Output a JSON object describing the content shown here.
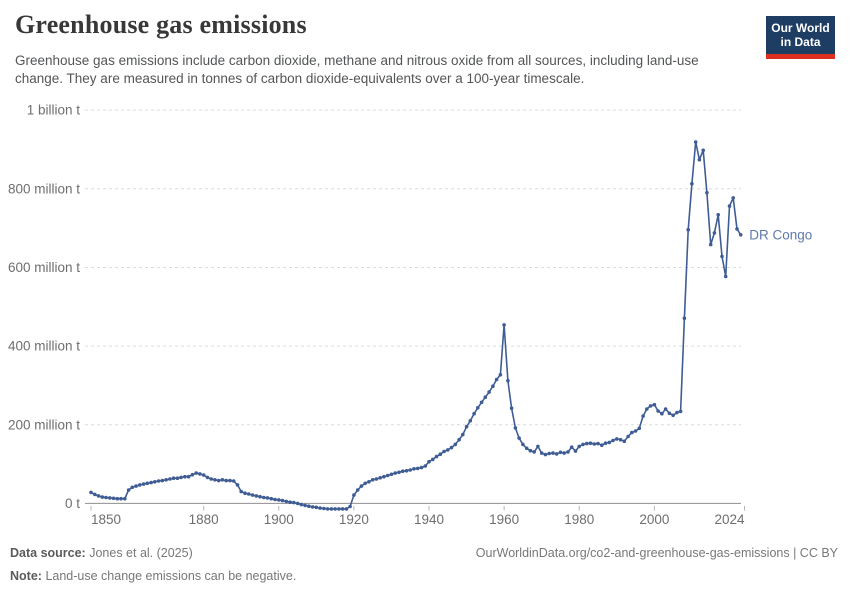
{
  "header": {
    "title": "Greenhouse gas emissions",
    "subtitle": "Greenhouse gas emissions include carbon dioxide, methane and nitrous oxide from all sources, including land-use change. They are measured in tonnes of carbon dioxide-equivalents over a 100-year timescale.",
    "logo_line1": "Our World",
    "logo_line2": "in Data",
    "logo_bg": "#1d3d63",
    "logo_stripe": "#dc2f1f"
  },
  "chart_data": {
    "type": "line",
    "title": "Greenhouse gas emissions",
    "unit": "tonnes of CO₂-equivalents",
    "grid": true,
    "x_start": 1850,
    "x_end": 2023,
    "x_ticks": [
      1850,
      1880,
      1900,
      1920,
      1940,
      1960,
      1980,
      2000,
      2024
    ],
    "xlim": [
      1850,
      2024
    ],
    "ylim": [
      -30,
      1000
    ],
    "y_ticks": [
      {
        "value": 0,
        "label": "0 t"
      },
      {
        "value": 200,
        "label": "200 million t"
      },
      {
        "value": 400,
        "label": "400 million t"
      },
      {
        "value": 600,
        "label": "600 million t"
      },
      {
        "value": 800,
        "label": "800 million t"
      },
      {
        "value": 1000,
        "label": "1 billion t"
      }
    ],
    "legend_position": "end-of-line-label",
    "series": [
      {
        "name": "DR Congo",
        "color": "#3f5d94",
        "label_color": "#6079ad",
        "values_unit": "million tonnes",
        "values": [
          28,
          23,
          19,
          16,
          15,
          14,
          13,
          12,
          12,
          12,
          34,
          41,
          44,
          47,
          49,
          51,
          53,
          55,
          57,
          58,
          60,
          62,
          64,
          64,
          66,
          68,
          68,
          73,
          77,
          75,
          72,
          66,
          62,
          60,
          58,
          60,
          58,
          58,
          57,
          47,
          30,
          26,
          24,
          21,
          19,
          17,
          15,
          14,
          12,
          10,
          9,
          7,
          5,
          3,
          2,
          0,
          -3,
          -5,
          -7,
          -9,
          -10,
          -12,
          -13,
          -14,
          -14,
          -14,
          -14,
          -14,
          -14,
          -8,
          21,
          34,
          44,
          51,
          55,
          60,
          62,
          65,
          68,
          71,
          74,
          77,
          79,
          82,
          83,
          85,
          88,
          89,
          91,
          95,
          106,
          112,
          119,
          125,
          132,
          136,
          142,
          150,
          162,
          175,
          195,
          210,
          228,
          243,
          257,
          270,
          283,
          298,
          315,
          327,
          454,
          312,
          242,
          192,
          166,
          150,
          140,
          134,
          131,
          145,
          128,
          124,
          127,
          128,
          126,
          130,
          128,
          131,
          143,
          133,
          145,
          150,
          152,
          153,
          151,
          152,
          148,
          153,
          155,
          160,
          164,
          162,
          158,
          170,
          180,
          184,
          191,
          222,
          240,
          248,
          251,
          235,
          228,
          240,
          229,
          224,
          231,
          234,
          471,
          696,
          813,
          919,
          874,
          898,
          790,
          658,
          688,
          734,
          628,
          577,
          756,
          777,
          698,
          683
        ]
      }
    ]
  },
  "footer": {
    "source_label": "Data source:",
    "source_value": "Jones et al. (2025)",
    "link": "OurWorldinData.org/co2-and-greenhouse-gas-emissions | CC BY",
    "note_label": "Note:",
    "note_value": "Land-use change emissions can be negative."
  },
  "colors": {
    "gridline": "#dcdcdc",
    "axis_line": "#8f8f8f",
    "tick_text": "#6e6e6e"
  }
}
